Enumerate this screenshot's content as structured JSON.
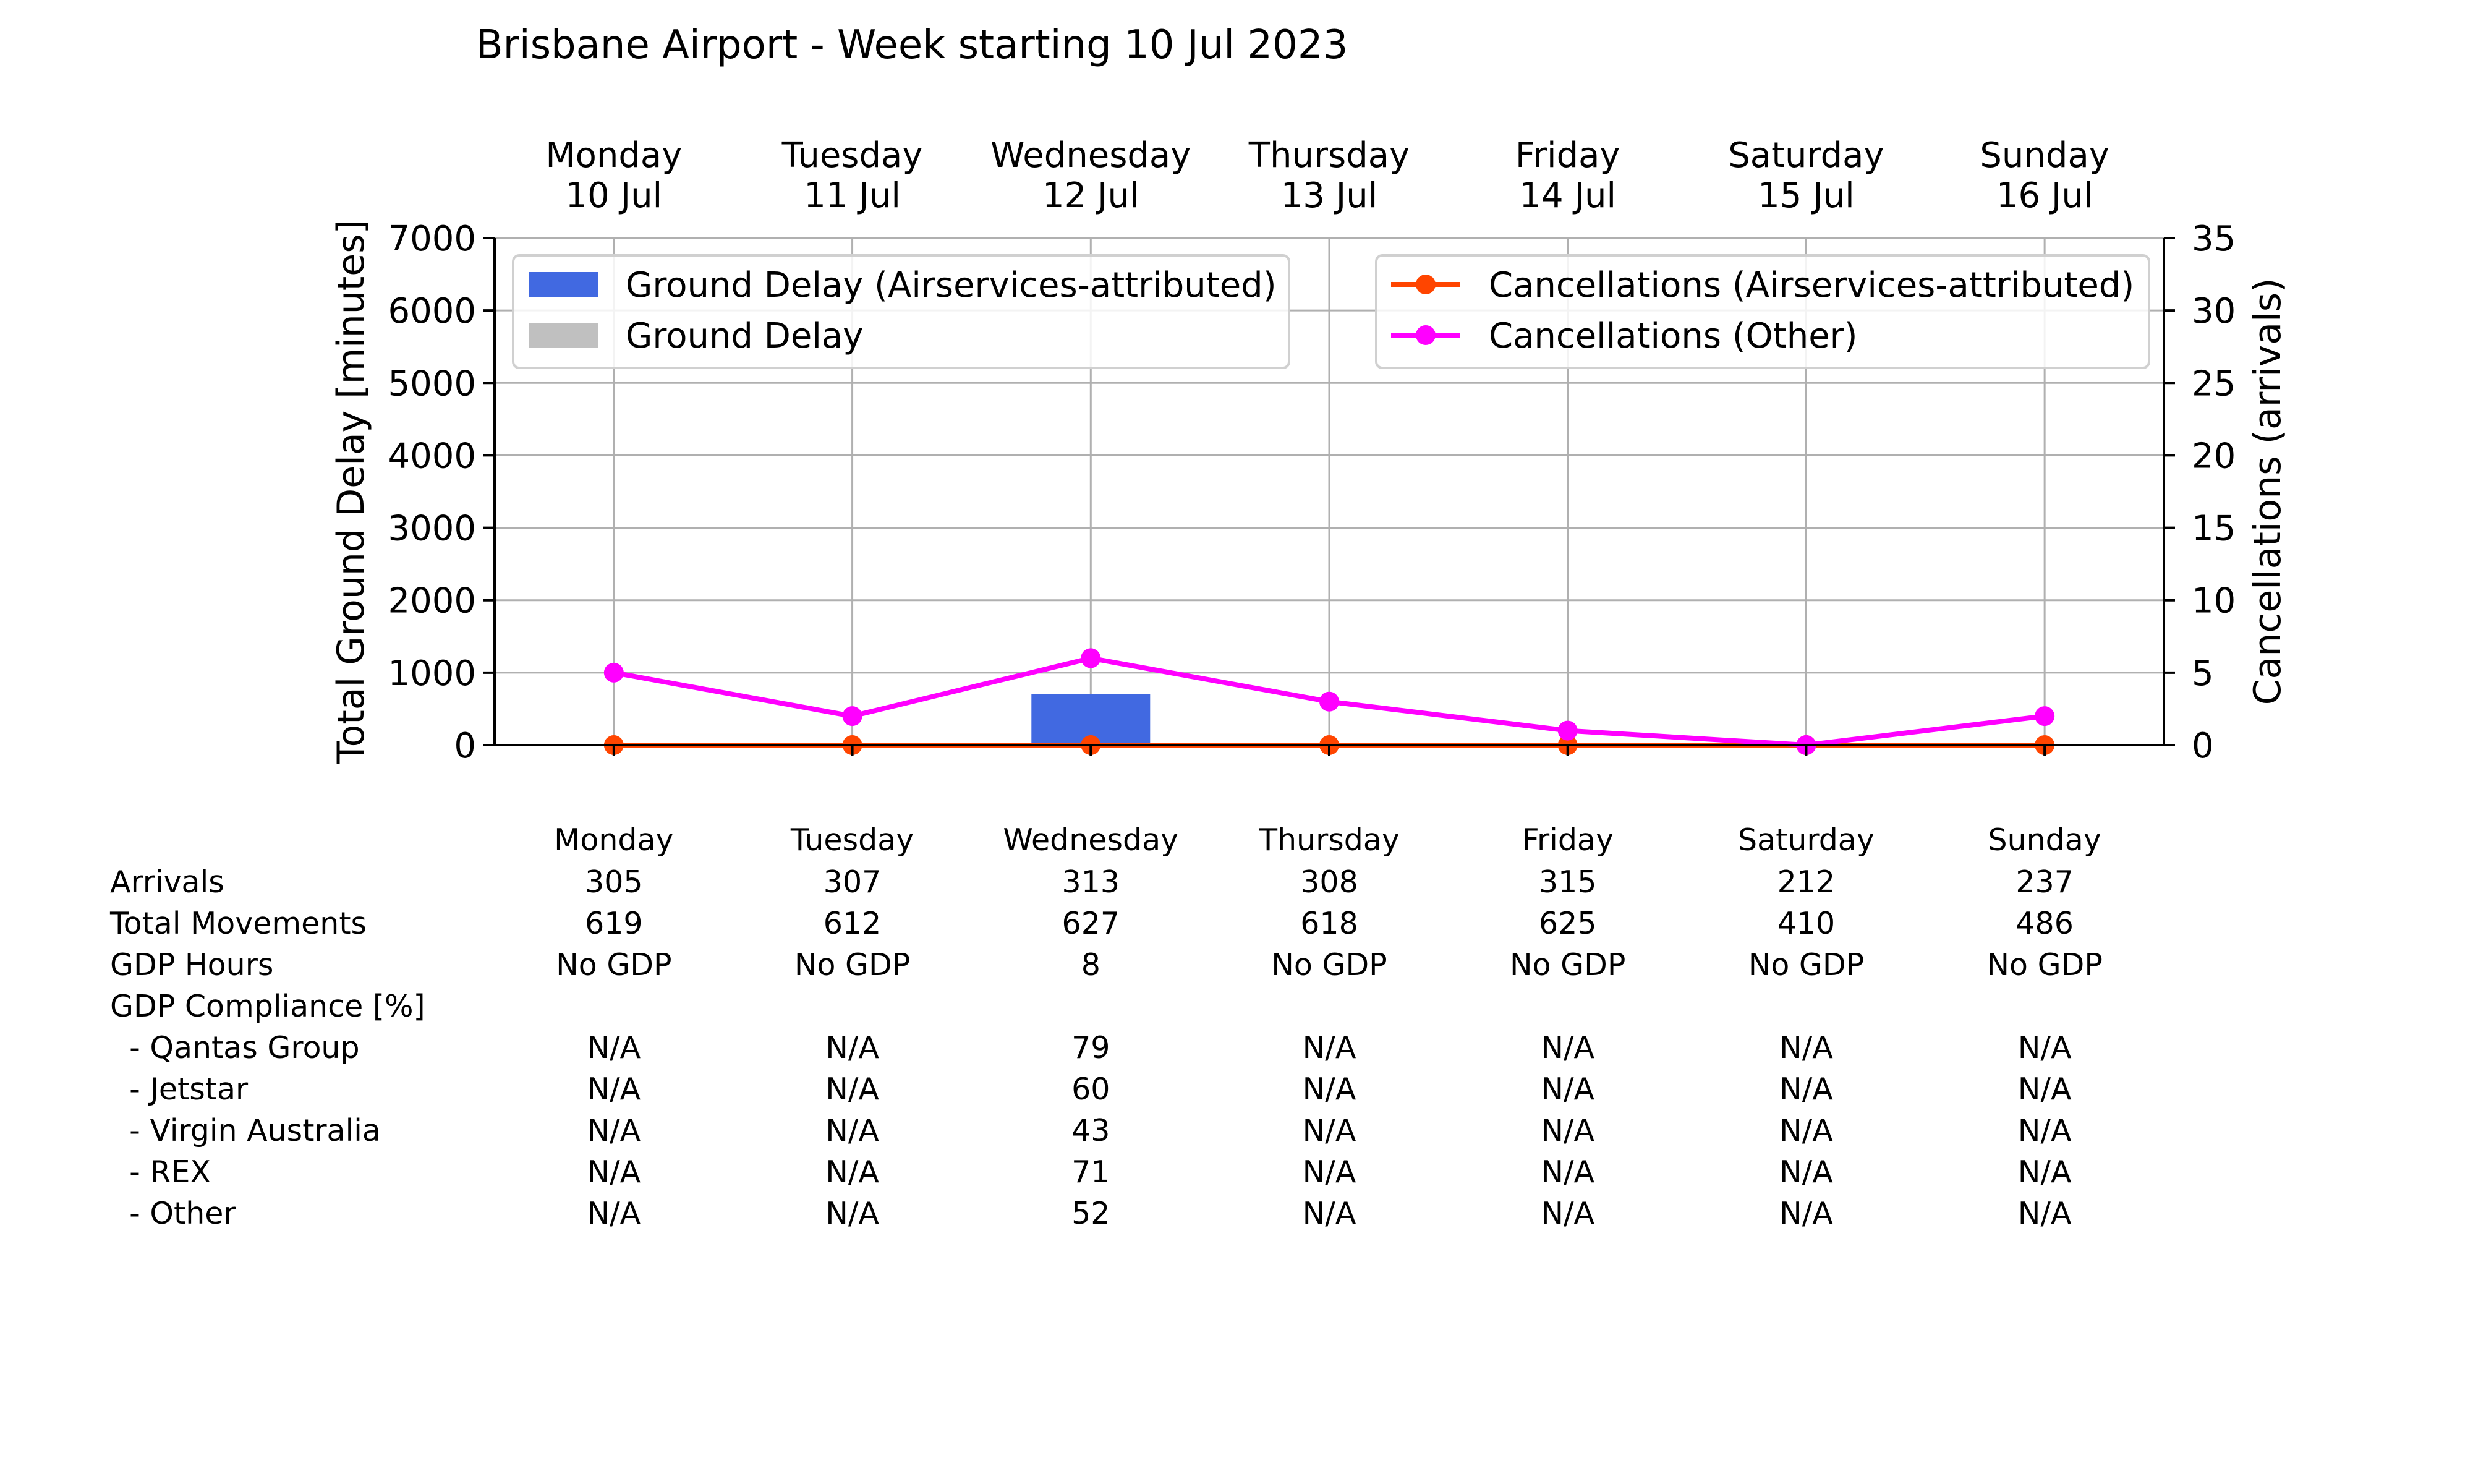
{
  "chart_data": {
    "type": "bar+line",
    "title": "Brisbane Airport - Week starting 10 Jul 2023",
    "categories": [
      "Monday",
      "Tuesday",
      "Wednesday",
      "Thursday",
      "Friday",
      "Saturday",
      "Sunday"
    ],
    "category_dates": [
      "10 Jul",
      "11 Jul",
      "12 Jul",
      "13 Jul",
      "14 Jul",
      "15 Jul",
      "16 Jul"
    ],
    "ylabel": "Total Ground Delay [minutes]",
    "ylim": [
      0,
      7000
    ],
    "yticks": [
      0,
      1000,
      2000,
      3000,
      4000,
      5000,
      6000,
      7000
    ],
    "y2label": "Cancellations (arrivals)",
    "y2lim": [
      0,
      35
    ],
    "y2ticks": [
      0,
      5,
      10,
      15,
      20,
      25,
      30,
      35
    ],
    "grid": true,
    "bar_series": [
      {
        "name": "Ground Delay (Airservices-attributed)",
        "color": "#4169e1",
        "values": [
          0,
          0,
          700,
          0,
          0,
          0,
          0
        ]
      },
      {
        "name": "Ground Delay",
        "color": "#c0c0c0",
        "values": [
          0,
          0,
          0,
          0,
          0,
          0,
          0
        ]
      }
    ],
    "line_series": [
      {
        "name": "Cancellations (Airservices-attributed)",
        "color": "#ff4500",
        "values": [
          0,
          0,
          0,
          0,
          0,
          0,
          0
        ]
      },
      {
        "name": "Cancellations (Other)",
        "color": "#ff00ff",
        "values": [
          5,
          2,
          6,
          3,
          1,
          0,
          2
        ]
      }
    ],
    "legend_left": "top-left",
    "legend_right": "top-right"
  },
  "stats_table": {
    "header": [
      "Monday",
      "Tuesday",
      "Wednesday",
      "Thursday",
      "Friday",
      "Saturday",
      "Sunday"
    ],
    "rows": [
      {
        "label": "Arrivals",
        "values": [
          "305",
          "307",
          "313",
          "308",
          "315",
          "212",
          "237"
        ]
      },
      {
        "label": "Total Movements",
        "values": [
          "619",
          "612",
          "627",
          "618",
          "625",
          "410",
          "486"
        ]
      },
      {
        "label": "GDP Hours",
        "values": [
          "No GDP",
          "No GDP",
          "8",
          "No GDP",
          "No GDP",
          "No GDP",
          "No GDP"
        ]
      },
      {
        "label": "GDP Compliance [%]",
        "values": [
          "",
          "",
          "",
          "",
          "",
          "",
          ""
        ]
      },
      {
        "label": "  - Qantas Group",
        "values": [
          "N/A",
          "N/A",
          "79",
          "N/A",
          "N/A",
          "N/A",
          "N/A"
        ]
      },
      {
        "label": "  - Jetstar",
        "values": [
          "N/A",
          "N/A",
          "60",
          "N/A",
          "N/A",
          "N/A",
          "N/A"
        ]
      },
      {
        "label": "  - Virgin Australia",
        "values": [
          "N/A",
          "N/A",
          "43",
          "N/A",
          "N/A",
          "N/A",
          "N/A"
        ]
      },
      {
        "label": "  - REX",
        "values": [
          "N/A",
          "N/A",
          "71",
          "N/A",
          "N/A",
          "N/A",
          "N/A"
        ]
      },
      {
        "label": "  - Other",
        "values": [
          "N/A",
          "N/A",
          "52",
          "N/A",
          "N/A",
          "N/A",
          "N/A"
        ]
      }
    ]
  }
}
